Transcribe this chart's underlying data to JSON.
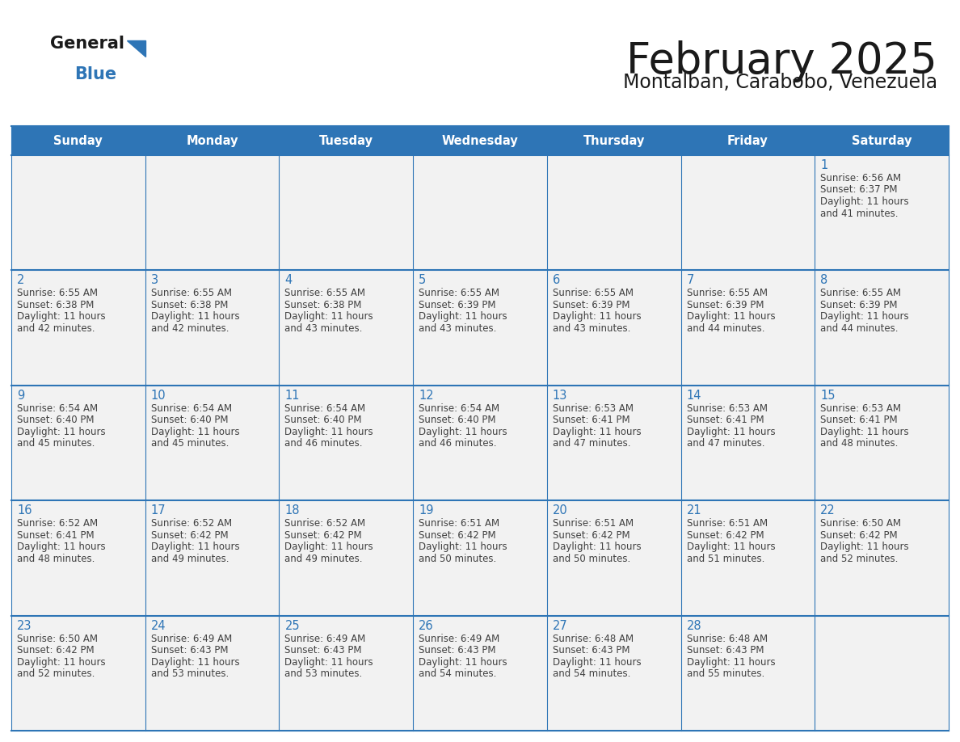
{
  "title": "February 2025",
  "subtitle": "Montalban, Carabobo, Venezuela",
  "header_bg": "#2E75B6",
  "header_text_color": "#FFFFFF",
  "cell_bg": "#F2F2F2",
  "day_number_color": "#2E75B6",
  "cell_text_color": "#404040",
  "grid_line_color": "#2E75B6",
  "weekdays": [
    "Sunday",
    "Monday",
    "Tuesday",
    "Wednesday",
    "Thursday",
    "Friday",
    "Saturday"
  ],
  "weeks": [
    [
      {
        "day": null,
        "sunrise": null,
        "sunset": null,
        "daylight_a": null,
        "daylight_b": null
      },
      {
        "day": null,
        "sunrise": null,
        "sunset": null,
        "daylight_a": null,
        "daylight_b": null
      },
      {
        "day": null,
        "sunrise": null,
        "sunset": null,
        "daylight_a": null,
        "daylight_b": null
      },
      {
        "day": null,
        "sunrise": null,
        "sunset": null,
        "daylight_a": null,
        "daylight_b": null
      },
      {
        "day": null,
        "sunrise": null,
        "sunset": null,
        "daylight_a": null,
        "daylight_b": null
      },
      {
        "day": null,
        "sunrise": null,
        "sunset": null,
        "daylight_a": null,
        "daylight_b": null
      },
      {
        "day": 1,
        "sunrise": "6:56 AM",
        "sunset": "6:37 PM",
        "daylight_a": "Daylight: 11 hours",
        "daylight_b": "and 41 minutes."
      }
    ],
    [
      {
        "day": 2,
        "sunrise": "6:55 AM",
        "sunset": "6:38 PM",
        "daylight_a": "Daylight: 11 hours",
        "daylight_b": "and 42 minutes."
      },
      {
        "day": 3,
        "sunrise": "6:55 AM",
        "sunset": "6:38 PM",
        "daylight_a": "Daylight: 11 hours",
        "daylight_b": "and 42 minutes."
      },
      {
        "day": 4,
        "sunrise": "6:55 AM",
        "sunset": "6:38 PM",
        "daylight_a": "Daylight: 11 hours",
        "daylight_b": "and 43 minutes."
      },
      {
        "day": 5,
        "sunrise": "6:55 AM",
        "sunset": "6:39 PM",
        "daylight_a": "Daylight: 11 hours",
        "daylight_b": "and 43 minutes."
      },
      {
        "day": 6,
        "sunrise": "6:55 AM",
        "sunset": "6:39 PM",
        "daylight_a": "Daylight: 11 hours",
        "daylight_b": "and 43 minutes."
      },
      {
        "day": 7,
        "sunrise": "6:55 AM",
        "sunset": "6:39 PM",
        "daylight_a": "Daylight: 11 hours",
        "daylight_b": "and 44 minutes."
      },
      {
        "day": 8,
        "sunrise": "6:55 AM",
        "sunset": "6:39 PM",
        "daylight_a": "Daylight: 11 hours",
        "daylight_b": "and 44 minutes."
      }
    ],
    [
      {
        "day": 9,
        "sunrise": "6:54 AM",
        "sunset": "6:40 PM",
        "daylight_a": "Daylight: 11 hours",
        "daylight_b": "and 45 minutes."
      },
      {
        "day": 10,
        "sunrise": "6:54 AM",
        "sunset": "6:40 PM",
        "daylight_a": "Daylight: 11 hours",
        "daylight_b": "and 45 minutes."
      },
      {
        "day": 11,
        "sunrise": "6:54 AM",
        "sunset": "6:40 PM",
        "daylight_a": "Daylight: 11 hours",
        "daylight_b": "and 46 minutes."
      },
      {
        "day": 12,
        "sunrise": "6:54 AM",
        "sunset": "6:40 PM",
        "daylight_a": "Daylight: 11 hours",
        "daylight_b": "and 46 minutes."
      },
      {
        "day": 13,
        "sunrise": "6:53 AM",
        "sunset": "6:41 PM",
        "daylight_a": "Daylight: 11 hours",
        "daylight_b": "and 47 minutes."
      },
      {
        "day": 14,
        "sunrise": "6:53 AM",
        "sunset": "6:41 PM",
        "daylight_a": "Daylight: 11 hours",
        "daylight_b": "and 47 minutes."
      },
      {
        "day": 15,
        "sunrise": "6:53 AM",
        "sunset": "6:41 PM",
        "daylight_a": "Daylight: 11 hours",
        "daylight_b": "and 48 minutes."
      }
    ],
    [
      {
        "day": 16,
        "sunrise": "6:52 AM",
        "sunset": "6:41 PM",
        "daylight_a": "Daylight: 11 hours",
        "daylight_b": "and 48 minutes."
      },
      {
        "day": 17,
        "sunrise": "6:52 AM",
        "sunset": "6:42 PM",
        "daylight_a": "Daylight: 11 hours",
        "daylight_b": "and 49 minutes."
      },
      {
        "day": 18,
        "sunrise": "6:52 AM",
        "sunset": "6:42 PM",
        "daylight_a": "Daylight: 11 hours",
        "daylight_b": "and 49 minutes."
      },
      {
        "day": 19,
        "sunrise": "6:51 AM",
        "sunset": "6:42 PM",
        "daylight_a": "Daylight: 11 hours",
        "daylight_b": "and 50 minutes."
      },
      {
        "day": 20,
        "sunrise": "6:51 AM",
        "sunset": "6:42 PM",
        "daylight_a": "Daylight: 11 hours",
        "daylight_b": "and 50 minutes."
      },
      {
        "day": 21,
        "sunrise": "6:51 AM",
        "sunset": "6:42 PM",
        "daylight_a": "Daylight: 11 hours",
        "daylight_b": "and 51 minutes."
      },
      {
        "day": 22,
        "sunrise": "6:50 AM",
        "sunset": "6:42 PM",
        "daylight_a": "Daylight: 11 hours",
        "daylight_b": "and 52 minutes."
      }
    ],
    [
      {
        "day": 23,
        "sunrise": "6:50 AM",
        "sunset": "6:42 PM",
        "daylight_a": "Daylight: 11 hours",
        "daylight_b": "and 52 minutes."
      },
      {
        "day": 24,
        "sunrise": "6:49 AM",
        "sunset": "6:43 PM",
        "daylight_a": "Daylight: 11 hours",
        "daylight_b": "and 53 minutes."
      },
      {
        "day": 25,
        "sunrise": "6:49 AM",
        "sunset": "6:43 PM",
        "daylight_a": "Daylight: 11 hours",
        "daylight_b": "and 53 minutes."
      },
      {
        "day": 26,
        "sunrise": "6:49 AM",
        "sunset": "6:43 PM",
        "daylight_a": "Daylight: 11 hours",
        "daylight_b": "and 54 minutes."
      },
      {
        "day": 27,
        "sunrise": "6:48 AM",
        "sunset": "6:43 PM",
        "daylight_a": "Daylight: 11 hours",
        "daylight_b": "and 54 minutes."
      },
      {
        "day": 28,
        "sunrise": "6:48 AM",
        "sunset": "6:43 PM",
        "daylight_a": "Daylight: 11 hours",
        "daylight_b": "and 55 minutes."
      },
      {
        "day": null,
        "sunrise": null,
        "sunset": null,
        "daylight_a": null,
        "daylight_b": null
      }
    ]
  ]
}
